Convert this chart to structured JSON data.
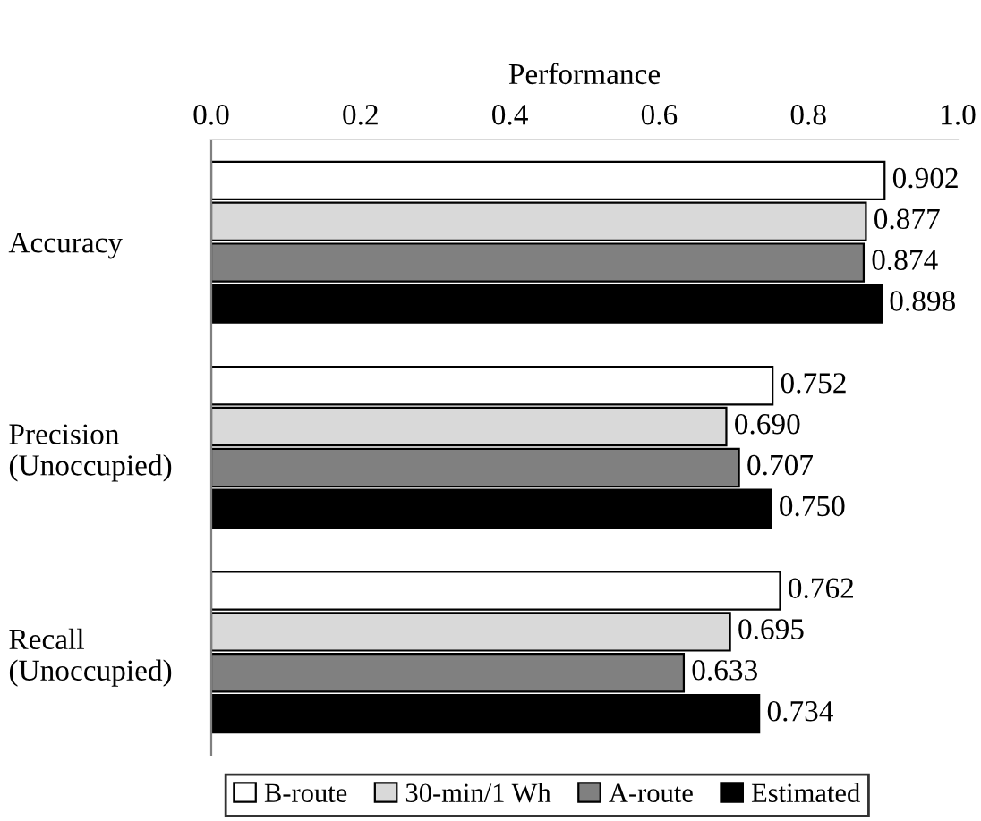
{
  "chart_data": {
    "type": "bar",
    "orientation": "horizontal",
    "xlabel": "Performance",
    "categories": [
      "Accuracy",
      "Precision\n(Unoccupied)",
      "Recall\n(Unoccupied)"
    ],
    "series": [
      {
        "name": "B-route",
        "color": "#ffffff",
        "values": [
          0.902,
          0.752,
          0.762
        ],
        "value_labels": [
          "0.902",
          "0.752",
          "0.762"
        ]
      },
      {
        "name": "30-min/1 Wh",
        "color": "#d9d9d9",
        "values": [
          0.877,
          0.69,
          0.695
        ],
        "value_labels": [
          "0.877",
          "0.690",
          "0.695"
        ]
      },
      {
        "name": "A-route",
        "color": "#808080",
        "values": [
          0.874,
          0.707,
          0.633
        ],
        "value_labels": [
          "0.874",
          "0.707",
          "0.633"
        ]
      },
      {
        "name": "Estimated",
        "color": "#000000",
        "values": [
          0.898,
          0.75,
          0.734
        ],
        "value_labels": [
          "0.898",
          "0.750",
          "0.734"
        ]
      }
    ],
    "xlim": [
      0,
      1
    ],
    "xticks": [
      {
        "value": 0,
        "label": "0.0"
      },
      {
        "value": 0.2,
        "label": "0.2"
      },
      {
        "value": 0.4,
        "label": "0.4"
      },
      {
        "value": 0.6,
        "label": "0.6"
      },
      {
        "value": 0.8,
        "label": "0.8"
      },
      {
        "value": 1,
        "label": "1.0"
      }
    ],
    "grid": false,
    "legend": "bottom"
  }
}
